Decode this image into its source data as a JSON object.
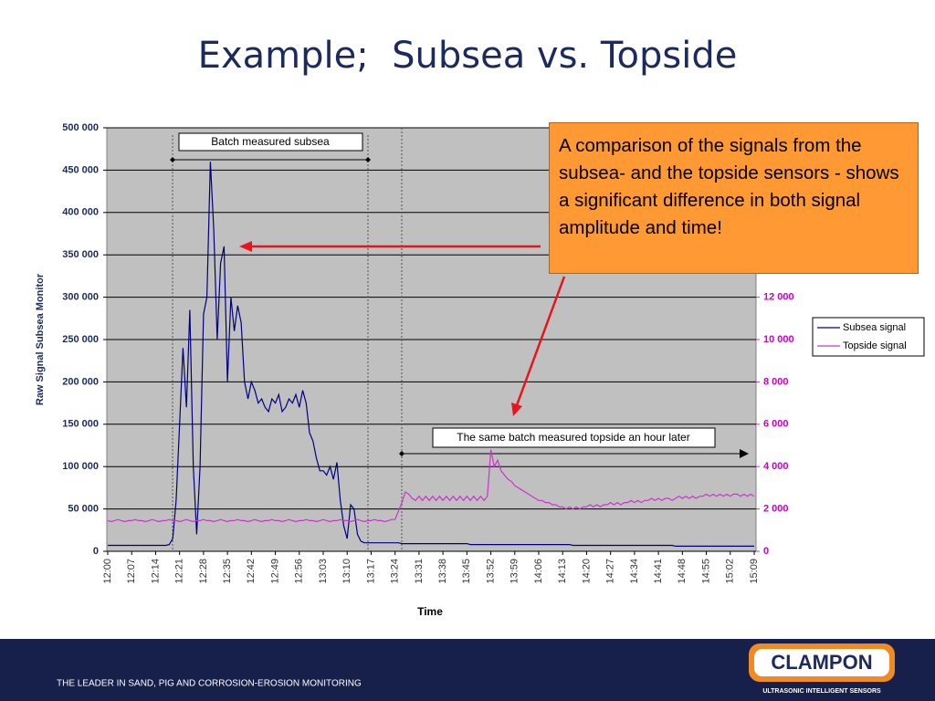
{
  "title": "Example;  Subsea vs. Topside",
  "chart_data": {
    "type": "line",
    "y_label": "Raw Signal Subsea Monitor",
    "x_label": "Time",
    "x": [
      "12:00",
      "12:01",
      "12:02",
      "12:03",
      "12:04",
      "12:05",
      "12:06",
      "12:07",
      "12:08",
      "12:09",
      "12:10",
      "12:11",
      "12:12",
      "12:13",
      "12:14",
      "12:15",
      "12:16",
      "12:17",
      "12:18",
      "12:19",
      "12:20",
      "12:21",
      "12:22",
      "12:23",
      "12:24",
      "12:25",
      "12:26",
      "12:27",
      "12:28",
      "12:29",
      "12:30",
      "12:31",
      "12:32",
      "12:33",
      "12:34",
      "12:35",
      "12:36",
      "12:37",
      "12:38",
      "12:39",
      "12:40",
      "12:41",
      "12:42",
      "12:43",
      "12:44",
      "12:45",
      "12:46",
      "12:47",
      "12:48",
      "12:49",
      "12:50",
      "12:51",
      "12:52",
      "12:53",
      "12:54",
      "12:55",
      "12:56",
      "12:57",
      "12:58",
      "12:59",
      "13:00",
      "13:01",
      "13:02",
      "13:03",
      "13:04",
      "13:05",
      "13:06",
      "13:07",
      "13:08",
      "13:09",
      "13:10",
      "13:11",
      "13:12",
      "13:13",
      "13:14",
      "13:15",
      "13:16",
      "13:17",
      "13:18",
      "13:19",
      "13:20",
      "13:21",
      "13:22",
      "13:23",
      "13:24",
      "13:25",
      "13:26",
      "13:27",
      "13:28",
      "13:29",
      "13:30",
      "13:31",
      "13:32",
      "13:33",
      "13:34",
      "13:35",
      "13:36",
      "13:37",
      "13:38",
      "13:39",
      "13:40",
      "13:41",
      "13:42",
      "13:43",
      "13:44",
      "13:45",
      "13:46",
      "13:47",
      "13:48",
      "13:49",
      "13:50",
      "13:51",
      "13:52",
      "13:53",
      "13:54",
      "13:55",
      "13:56",
      "13:57",
      "13:58",
      "13:59",
      "14:00",
      "14:01",
      "14:02",
      "14:03",
      "14:04",
      "14:05",
      "14:06",
      "14:07",
      "14:08",
      "14:09",
      "14:10",
      "14:11",
      "14:12",
      "14:13",
      "14:14",
      "14:15",
      "14:16",
      "14:17",
      "14:18",
      "14:19",
      "14:20",
      "14:21",
      "14:22",
      "14:23",
      "14:24",
      "14:25",
      "14:26",
      "14:27",
      "14:28",
      "14:29",
      "14:30",
      "14:31",
      "14:32",
      "14:33",
      "14:34",
      "14:35",
      "14:36",
      "14:37",
      "14:38",
      "14:39",
      "14:40",
      "14:41",
      "14:42",
      "14:43",
      "14:44",
      "14:45",
      "14:46",
      "14:47",
      "14:48",
      "14:49",
      "14:50",
      "14:51",
      "14:52",
      "14:53",
      "14:54",
      "14:55",
      "14:56",
      "14:57",
      "14:58",
      "14:59",
      "15:00",
      "15:01",
      "15:02",
      "15:03",
      "15:04",
      "15:05",
      "15:06",
      "15:07",
      "15:08",
      "15:09"
    ],
    "series": [
      {
        "name": "Subsea signal",
        "color": "#000080",
        "values": [
          7000,
          7000,
          7000,
          7000,
          7000,
          7000,
          7000,
          7000,
          7000,
          7000,
          7000,
          7000,
          7000,
          7000,
          7000,
          7000,
          7000,
          7000,
          8000,
          15000,
          60000,
          150000,
          240000,
          170000,
          285000,
          100000,
          20000,
          100000,
          280000,
          300000,
          460000,
          380000,
          250000,
          340000,
          360000,
          200000,
          300000,
          260000,
          290000,
          270000,
          200000,
          180000,
          200000,
          190000,
          175000,
          180000,
          170000,
          165000,
          180000,
          175000,
          185000,
          165000,
          170000,
          180000,
          175000,
          185000,
          170000,
          190000,
          175000,
          140000,
          130000,
          110000,
          95000,
          95000,
          90000,
          100000,
          85000,
          105000,
          60000,
          30000,
          15000,
          55000,
          50000,
          20000,
          12000,
          10000,
          10000,
          10000,
          10000,
          10000,
          10000,
          10000,
          10000,
          10000,
          10000,
          10000,
          9000,
          9000,
          9000,
          9000,
          9000,
          9000,
          9000,
          9000,
          9000,
          9000,
          9000,
          9000,
          9000,
          9000,
          9000,
          9000,
          9000,
          9000,
          9000,
          9000,
          8000,
          8000,
          8000,
          8000,
          8000,
          8000,
          8000,
          8000,
          8000,
          8000,
          8000,
          8000,
          8000,
          8000,
          8000,
          8000,
          8000,
          8000,
          8000,
          8000,
          8000,
          8000,
          8000,
          8000,
          8000,
          8000,
          8000,
          8000,
          8000,
          8000,
          7000,
          7000,
          7000,
          7000,
          7000,
          7000,
          7000,
          7000,
          7000,
          7000,
          7000,
          7000,
          7000,
          7000,
          7000,
          7000,
          7000,
          7000,
          7000,
          7000,
          7000,
          7000,
          7000,
          7000,
          7000,
          7000,
          7000,
          7000,
          7000,
          7000,
          6000,
          6000,
          6000,
          6000,
          6000,
          6000,
          6000,
          6000,
          6000,
          6000,
          6000,
          6000,
          6000,
          6000,
          6000,
          6000,
          6000,
          6000,
          6000,
          6000,
          6000,
          6000,
          6000,
          6000
        ]
      },
      {
        "name": "Topside signal",
        "color": "#cc33cc",
        "axis": "y2",
        "values": [
          1450,
          1400,
          1450,
          1500,
          1450,
          1400,
          1450,
          1450,
          1500,
          1450,
          1450,
          1400,
          1450,
          1500,
          1450,
          1400,
          1450,
          1450,
          1500,
          1450,
          1450,
          1400,
          1450,
          1500,
          1450,
          1400,
          1450,
          1450,
          1500,
          1450,
          1450,
          1400,
          1450,
          1500,
          1450,
          1400,
          1450,
          1450,
          1500,
          1450,
          1450,
          1400,
          1450,
          1500,
          1450,
          1400,
          1450,
          1450,
          1500,
          1450,
          1450,
          1400,
          1450,
          1500,
          1450,
          1400,
          1450,
          1450,
          1500,
          1450,
          1450,
          1400,
          1450,
          1500,
          1450,
          1400,
          1450,
          1450,
          1500,
          1450,
          1450,
          1400,
          1450,
          1500,
          1450,
          1400,
          1450,
          1450,
          1500,
          1450,
          1450,
          1400,
          1450,
          1500,
          1500,
          1900,
          2300,
          2800,
          2700,
          2500,
          2400,
          2600,
          2400,
          2600,
          2400,
          2600,
          2400,
          2600,
          2400,
          2600,
          2400,
          2600,
          2400,
          2600,
          2400,
          2600,
          2400,
          2600,
          2400,
          2600,
          2400,
          2600,
          4800,
          4000,
          4300,
          3800,
          3600,
          3400,
          3300,
          3100,
          3000,
          2900,
          2800,
          2700,
          2600,
          2500,
          2400,
          2400,
          2300,
          2300,
          2200,
          2200,
          2100,
          2100,
          2000,
          2100,
          2000,
          2100,
          2000,
          2100,
          2100,
          2200,
          2100,
          2200,
          2100,
          2200,
          2200,
          2300,
          2200,
          2300,
          2200,
          2300,
          2300,
          2400,
          2300,
          2400,
          2300,
          2400,
          2400,
          2500,
          2400,
          2500,
          2400,
          2500,
          2500,
          2400,
          2500,
          2600,
          2500,
          2600,
          2500,
          2600,
          2500,
          2600,
          2600,
          2700,
          2600,
          2700,
          2600,
          2700,
          2600,
          2700,
          2600,
          2700,
          2700,
          2600,
          2700,
          2600,
          2700,
          2600
        ]
      }
    ],
    "ylim": [
      0,
      500000
    ],
    "yticks": [
      0,
      {
        "value": 50000,
        "label": "50 000"
      },
      {
        "value": 100000,
        "label": "100 000"
      },
      {
        "value": 150000,
        "label": "150 000"
      },
      {
        "value": 200000,
        "label": "200 000"
      },
      {
        "value": 250000,
        "label": "250 000"
      },
      {
        "value": 300000,
        "label": "300 000"
      },
      {
        "value": 350000,
        "label": "350 000"
      },
      {
        "value": 400000,
        "label": "400 000"
      },
      {
        "value": 450000,
        "label": "450 000"
      },
      {
        "value": 500000,
        "label": "500 000"
      }
    ],
    "y2lim": [
      0,
      20000
    ],
    "y2ticks": [
      0,
      {
        "value": 2000,
        "label": "2 000"
      },
      {
        "value": 4000,
        "label": "4 000"
      },
      {
        "value": 6000,
        "label": "6 000"
      },
      {
        "value": 8000,
        "label": "8 000"
      },
      {
        "value": 10000,
        "label": "10 000"
      },
      {
        "value": 12000,
        "label": "12 000"
      }
    ],
    "grid": true,
    "legend": "right",
    "annotations": [
      "Batch measured subsea",
      "The same batch measured topside an hour later",
      "A comparison of the signals from the subsea- and the topside sensors - shows a significant difference in both signal amplitude and time!"
    ]
  },
  "footer": {
    "tagline": "THE LEADER IN SAND, PIG AND CORROSION-EROSION MONITORING",
    "logo": "CLAMPON",
    "logo_subtitle": "ULTRASONIC INTELLIGENT SENSORS"
  }
}
